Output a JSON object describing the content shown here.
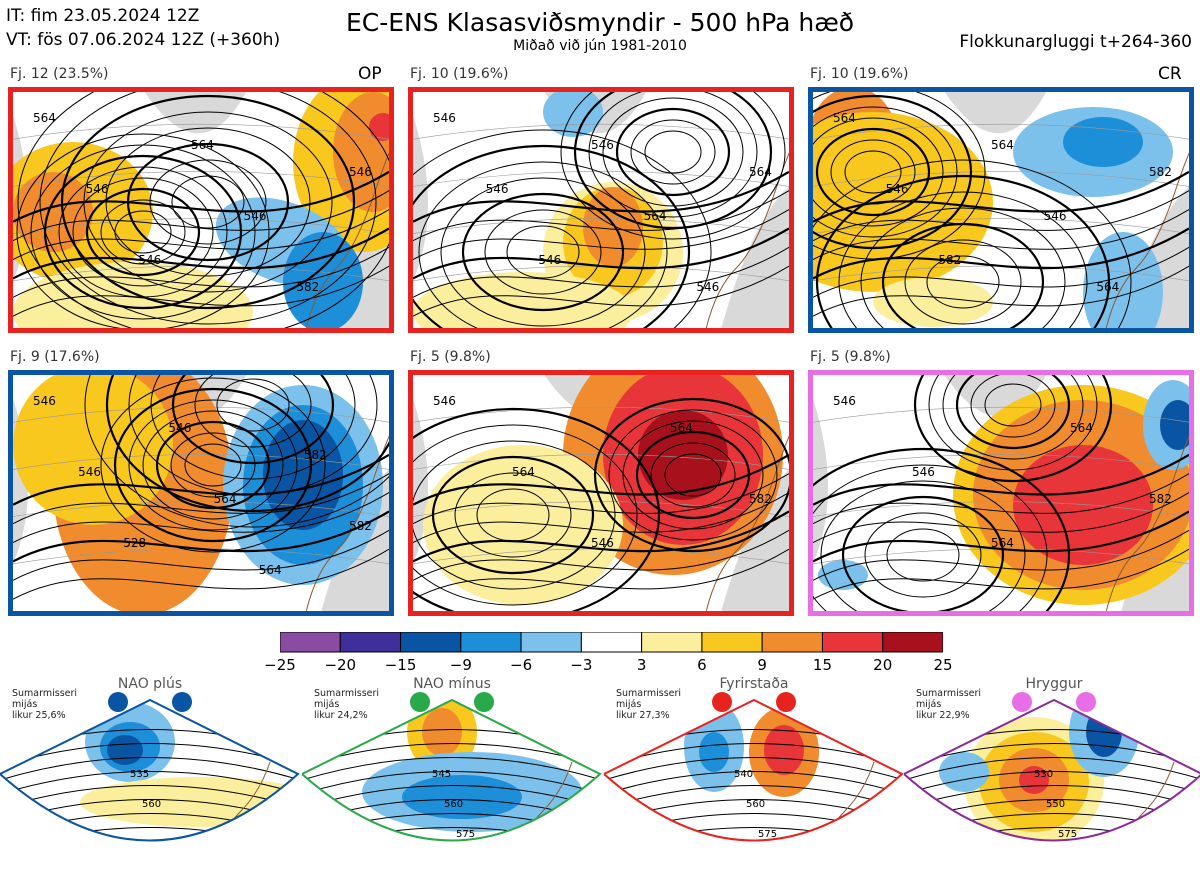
{
  "header": {
    "init_time": "IT: fim 23.05.2024 12Z",
    "valid_time": "VT: fös 07.06.2024 12Z  (+360h)",
    "title": "EC-ENS Klasasviðsmyndir - 500 hPa hæð",
    "subtitle": "Miðað við jún 1981-2010",
    "window": "Flokkunargluggi t+264-360"
  },
  "panels": [
    {
      "label": "Fj. 12 (23.5%)",
      "tag": "OP",
      "border_color": "#e8221f",
      "contour_labels": [
        "564",
        "546",
        "546",
        "564",
        "546",
        "582",
        "546"
      ]
    },
    {
      "label": "Fj. 10 (19.6%)",
      "tag": "",
      "border_color": "#e8221f",
      "contour_labels": [
        "546",
        "546",
        "546",
        "546",
        "564",
        "546",
        "564"
      ]
    },
    {
      "label": "Fj. 10 (19.6%)",
      "tag": "CR",
      "border_color": "#0a55a3",
      "contour_labels": [
        "564",
        "546",
        "582",
        "564",
        "546",
        "564",
        "582"
      ]
    },
    {
      "label": "Fj. 9 (17.6%)",
      "tag": "",
      "border_color": "#0a55a3",
      "contour_labels": [
        "546",
        "546",
        "528",
        "546",
        "564",
        "564",
        "582",
        "582"
      ]
    },
    {
      "label": "Fj. 5 (9.8%)",
      "tag": "",
      "border_color": "#e8221f",
      "contour_labels": [
        "546",
        "564",
        "546",
        "564",
        "582"
      ]
    },
    {
      "label": "Fj. 5 (9.8%)",
      "tag": "",
      "border_color": "#e86ee8",
      "contour_labels": [
        "546",
        "546",
        "564",
        "564",
        "582"
      ]
    }
  ],
  "colorbar": {
    "ticks": [
      "−25",
      "−20",
      "−15",
      "−9",
      "−6",
      "−3",
      "3",
      "6",
      "9",
      "15",
      "20",
      "25"
    ],
    "colors": [
      "#8a4ca3",
      "#3f2f9a",
      "#0a55a3",
      "#1d8fd9",
      "#7cc1ec",
      "#ffffff",
      "#fbee9c",
      "#f8c81e",
      "#f08c2e",
      "#e8353a",
      "#a8111b"
    ]
  },
  "regimes": [
    {
      "title": "NAO plús",
      "note": [
        "Sumarmisseri",
        "mijás",
        "likur 25,6%"
      ],
      "color": "#0a55a3",
      "labels": [
        "535",
        "560"
      ]
    },
    {
      "title": "NAO mínus",
      "note": [
        "Sumarmisseri",
        "mijás",
        "likur 24,2%"
      ],
      "color": "#2aa94a",
      "labels": [
        "545",
        "560",
        "575"
      ]
    },
    {
      "title": "Fyrirstaða",
      "note": [
        "Sumarmisseri",
        "mijás",
        "likur 27,3%"
      ],
      "color": "#e8221f",
      "labels": [
        "540",
        "560",
        "575"
      ]
    },
    {
      "title": "Hryggur",
      "note": [
        "Sumarmisseri",
        "mijás",
        "likur 22,9%"
      ],
      "color": "#8a2a9a",
      "dot_color": "#e86ee8",
      "labels": [
        "530",
        "550",
        "575"
      ]
    }
  ],
  "colors": {
    "land": "#d9d9d9",
    "coast": "#8a5a32",
    "contour": "#000000"
  },
  "chart_data": [
    {
      "type": "heatmap",
      "title": "EC-ENS Klasasviðsmyndir - 500 hPa hæð",
      "subtitle": "Miðað við jún 1981-2010",
      "colorbar_levels": [
        -25,
        -20,
        -15,
        -9,
        -6,
        -3,
        3,
        6,
        9,
        15,
        20,
        25
      ],
      "series": [
        {
          "name": "Fj. 12 (23.5%)",
          "contour_levels": [
            546,
            564,
            582
          ]
        },
        {
          "name": "Fj. 10 (19.6%)",
          "contour_levels": [
            546,
            564
          ]
        },
        {
          "name": "Fj. 10 (19.6%)",
          "contour_levels": [
            546,
            564,
            582
          ]
        },
        {
          "name": "Fj. 9 (17.6%)",
          "contour_levels": [
            528,
            546,
            564,
            582
          ]
        },
        {
          "name": "Fj. 5 (9.8%)",
          "contour_levels": [
            546,
            564,
            582
          ]
        },
        {
          "name": "Fj. 5 (9.8%)",
          "contour_levels": [
            546,
            564,
            582
          ]
        }
      ]
    }
  ]
}
